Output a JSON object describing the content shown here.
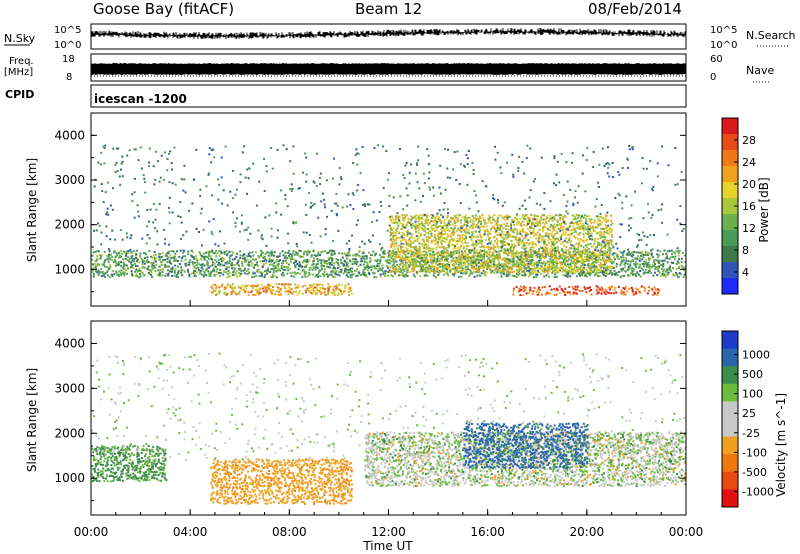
{
  "header": {
    "title": "Goose Bay (fitACF)",
    "beam": "Beam 12",
    "date": "08/Feb/2014"
  },
  "strips": {
    "nsky_label": "N.Sky",
    "nsky_ticks": [
      "10^5",
      "10^0"
    ],
    "nsearch_label": "N.Search",
    "nsearch_ticks": [
      "10^5",
      "10^0"
    ],
    "freq_label": "Freq.",
    "freq_unit": "[MHz]",
    "freq_ticks": [
      "18",
      "8"
    ],
    "nave_label": "Nave",
    "nave_ticks": [
      "60",
      "0"
    ],
    "cpid_label": "CPID",
    "cpid_value": "icescan -1200"
  },
  "chart_data": [
    {
      "type": "heatmap",
      "panel": "power",
      "xlabel": "",
      "ylabel": "Slant Range [km]",
      "ylim": [
        180,
        4500
      ],
      "yticks": [
        1000,
        2000,
        3000,
        4000
      ],
      "ytick_labels": [
        "1000",
        "2000",
        "3000",
        "4000"
      ],
      "colorbar": {
        "label": "Power [dB]",
        "range": [
          0,
          32
        ],
        "ticks": [
          4,
          8,
          12,
          16,
          20,
          24,
          28
        ],
        "tick_labels": [
          "4",
          "8",
          "12",
          "16",
          "20",
          "24",
          "28"
        ],
        "colors": [
          "#1f2aff",
          "#2f56b8",
          "#3d7a4a",
          "#4a9a5a",
          "#6ab04c",
          "#a6c83a",
          "#e6d22a",
          "#f0a21e",
          "#f07818",
          "#e84a18",
          "#d81a1a"
        ]
      },
      "features": [
        {
          "name": "E-region band",
          "x_hours": [
            0,
            24
          ],
          "range_km": [
            800,
            1400
          ],
          "level": 10
        },
        {
          "name": "near-range echoes",
          "x_hours": [
            4.8,
            10.5
          ],
          "range_km": [
            400,
            650
          ],
          "level": 22
        },
        {
          "name": "evening F-region",
          "x_hours": [
            12,
            21
          ],
          "range_km": [
            900,
            2200
          ],
          "level": 18
        },
        {
          "name": "close range strong echoes",
          "x_hours": [
            17,
            23
          ],
          "range_km": [
            400,
            600
          ],
          "level": 28
        }
      ]
    },
    {
      "type": "heatmap",
      "panel": "velocity",
      "xlabel": "Time UT",
      "ylabel": "Slant Range [km]",
      "ylim": [
        180,
        4500
      ],
      "yticks": [
        1000,
        2000,
        3000,
        4000
      ],
      "ytick_labels": [
        "1000",
        "2000",
        "3000",
        "4000"
      ],
      "xlim_hours": [
        0,
        24
      ],
      "xticks": [
        "00:00",
        "04:00",
        "08:00",
        "12:00",
        "16:00",
        "20:00",
        "00:00"
      ],
      "colorbar": {
        "label": "Velocity [m s^-1]",
        "tick_labels": [
          "1000",
          "500",
          "100",
          "25",
          "-25",
          "-100",
          "-500",
          "-1000"
        ],
        "colors": [
          "#1e3cc8",
          "#2a66b0",
          "#3c8c4a",
          "#6cbc3c",
          "#c8c8c8",
          "#c8c8c8",
          "#f0a020",
          "#f07810",
          "#e84a10",
          "#e01010"
        ]
      },
      "features": [
        {
          "name": "ground scatter band",
          "x_hours": [
            11,
            24
          ],
          "range_km": [
            800,
            2000
          ],
          "velocity": 0
        },
        {
          "name": "westward flow",
          "x_hours": [
            4.8,
            10.5
          ],
          "range_km": [
            400,
            1400
          ],
          "velocity": -400
        },
        {
          "name": "eastward flow",
          "x_hours": [
            15,
            20
          ],
          "range_km": [
            1200,
            2200
          ],
          "velocity": 600
        },
        {
          "name": "early positive velocities",
          "x_hours": [
            0,
            3
          ],
          "range_km": [
            900,
            1700
          ],
          "velocity": 150
        }
      ]
    }
  ]
}
